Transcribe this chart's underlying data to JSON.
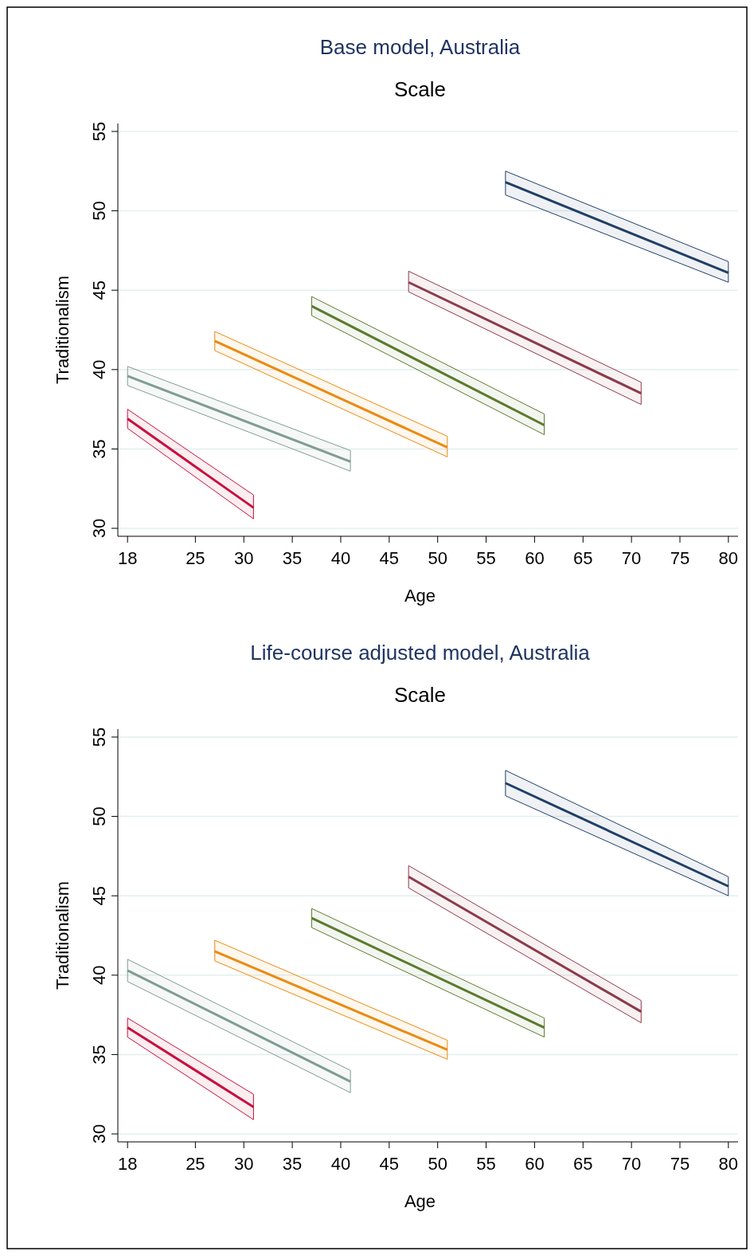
{
  "chart_data": [
    {
      "type": "line",
      "title": "Base model, Australia",
      "subtitle": "Scale",
      "xlabel": "Age",
      "ylabel": "Traditionalism",
      "xlim": [
        17,
        81
      ],
      "ylim": [
        29.5,
        55.5
      ],
      "xticks": [
        18,
        25,
        30,
        35,
        40,
        45,
        50,
        55,
        60,
        65,
        70,
        75,
        80
      ],
      "yticks": [
        30,
        35,
        40,
        45,
        50,
        55
      ],
      "grid": "y",
      "marker": "none",
      "line_style": "solid",
      "series": [
        {
          "color": "#c8103c",
          "x": [
            18,
            31
          ],
          "values": [
            36.9,
            31.3
          ],
          "lower": [
            36.3,
            30.6
          ],
          "upper": [
            37.5,
            32.1
          ]
        },
        {
          "color": "#7f9c94",
          "x": [
            18,
            41
          ],
          "values": [
            39.6,
            34.2
          ],
          "lower": [
            39.0,
            33.6
          ],
          "upper": [
            40.2,
            34.9
          ]
        },
        {
          "color": "#ea8a10",
          "x": [
            27,
            51
          ],
          "values": [
            41.8,
            35.1
          ],
          "lower": [
            41.2,
            34.5
          ],
          "upper": [
            42.4,
            35.8
          ]
        },
        {
          "color": "#5b7a2c",
          "x": [
            37,
            61
          ],
          "values": [
            44.0,
            36.5
          ],
          "lower": [
            43.4,
            35.9
          ],
          "upper": [
            44.6,
            37.2
          ]
        },
        {
          "color": "#8c3a4a",
          "x": [
            47,
            71
          ],
          "values": [
            45.5,
            38.5
          ],
          "lower": [
            44.9,
            37.8
          ],
          "upper": [
            46.2,
            39.2
          ]
        },
        {
          "color": "#1f3f66",
          "x": [
            57,
            80
          ],
          "values": [
            51.8,
            46.1
          ],
          "lower": [
            51.0,
            45.5
          ],
          "upper": [
            52.5,
            46.8
          ]
        }
      ]
    },
    {
      "type": "line",
      "title": "Life-course adjusted model, Australia",
      "subtitle": "Scale",
      "xlabel": "Age",
      "ylabel": "Traditionalism",
      "xlim": [
        17,
        81
      ],
      "ylim": [
        29.5,
        55.5
      ],
      "xticks": [
        18,
        25,
        30,
        35,
        40,
        45,
        50,
        55,
        60,
        65,
        70,
        75,
        80
      ],
      "yticks": [
        30,
        35,
        40,
        45,
        50,
        55
      ],
      "grid": "y",
      "marker": "none",
      "line_style": "solid",
      "series": [
        {
          "color": "#c8103c",
          "x": [
            18,
            31
          ],
          "values": [
            36.7,
            31.7
          ],
          "lower": [
            36.1,
            30.9
          ],
          "upper": [
            37.3,
            32.5
          ]
        },
        {
          "color": "#7f9c94",
          "x": [
            18,
            41
          ],
          "values": [
            40.3,
            33.3
          ],
          "lower": [
            39.6,
            32.6
          ],
          "upper": [
            41.0,
            34.0
          ]
        },
        {
          "color": "#ea8a10",
          "x": [
            27,
            51
          ],
          "values": [
            41.5,
            35.3
          ],
          "lower": [
            40.9,
            34.7
          ],
          "upper": [
            42.2,
            35.9
          ]
        },
        {
          "color": "#5b7a2c",
          "x": [
            37,
            61
          ],
          "values": [
            43.6,
            36.7
          ],
          "lower": [
            43.0,
            36.1
          ],
          "upper": [
            44.2,
            37.3
          ]
        },
        {
          "color": "#8c3a4a",
          "x": [
            47,
            71
          ],
          "values": [
            46.2,
            37.7
          ],
          "lower": [
            45.5,
            37.0
          ],
          "upper": [
            46.9,
            38.4
          ]
        },
        {
          "color": "#1f3f66",
          "x": [
            57,
            80
          ],
          "values": [
            52.1,
            45.6
          ],
          "lower": [
            51.3,
            45.0
          ],
          "upper": [
            52.9,
            46.2
          ]
        }
      ]
    }
  ]
}
